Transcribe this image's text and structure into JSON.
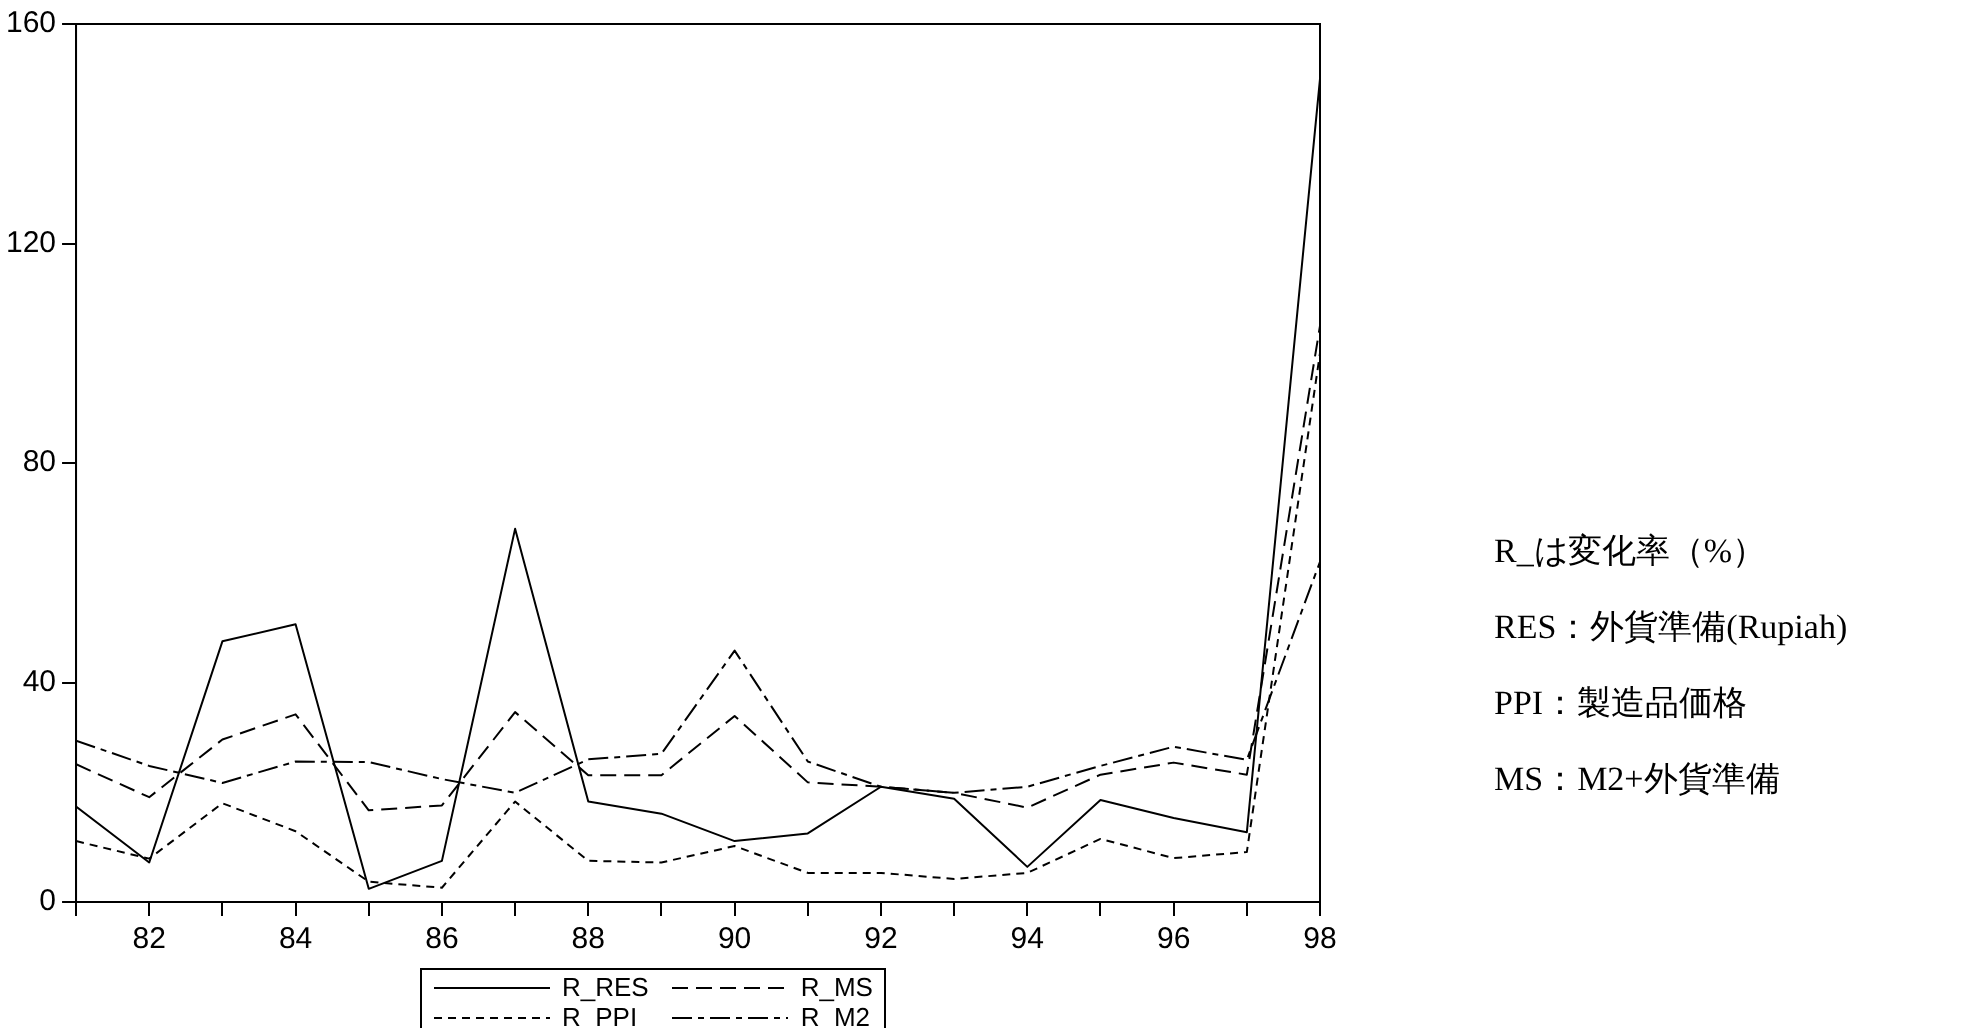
{
  "chart_data": {
    "type": "line",
    "x": [
      81,
      82,
      83,
      84,
      85,
      86,
      87,
      88,
      89,
      90,
      91,
      92,
      93,
      94,
      95,
      96,
      97,
      98
    ],
    "series": [
      {
        "name": "R_RES",
        "color": "#000000",
        "line_style": "solid",
        "values": [
          17.4,
          7.2,
          47.5,
          50.6,
          2.4,
          7.5,
          68,
          18.3,
          16.1,
          11.1,
          12.5,
          21,
          18.8,
          6.4,
          18.6,
          15.3,
          12.7,
          150
        ]
      },
      {
        "name": "R_MS",
        "color": "#000000",
        "line_style": "dashed",
        "values": [
          25.1,
          19.1,
          29.6,
          34.2,
          16.7,
          17.6,
          34.6,
          23.1,
          23.1,
          33.9,
          21.8,
          21,
          19.9,
          17.2,
          23.2,
          25.4,
          23.2,
          105
        ]
      },
      {
        "name": "R_PPI",
        "color": "#000000",
        "line_style": "dashed",
        "values": [
          11.1,
          7.9,
          18,
          12.9,
          3.7,
          2.6,
          18.3,
          7.5,
          7.2,
          10.2,
          5.3,
          5.3,
          4.2,
          5.3,
          11.5,
          8,
          9.1,
          100
        ]
      },
      {
        "name": "R_M2",
        "color": "#000000",
        "line_style": "dashed",
        "values": [
          29.4,
          24.8,
          21.7,
          25.6,
          25.5,
          22.4,
          19.9,
          26,
          27,
          45.8,
          25.6,
          21,
          19.9,
          21,
          24.8,
          28.3,
          25.9,
          62
        ]
      }
    ],
    "xlim": [
      81,
      98
    ],
    "xticks": [
      {
        "value": 81,
        "label": null
      },
      82,
      {
        "value": 83,
        "label": null
      },
      84,
      {
        "value": 85,
        "label": null
      },
      86,
      {
        "value": 87,
        "label": null
      },
      88,
      {
        "value": 89,
        "label": null
      },
      90,
      {
        "value": 91,
        "label": null
      },
      92,
      {
        "value": 93,
        "label": null
      },
      94,
      {
        "value": 95,
        "label": null
      },
      96,
      {
        "value": 97,
        "label": null
      },
      98
    ],
    "ylim": [
      0,
      160
    ],
    "yticks": [
      0,
      40,
      80,
      120,
      160
    ],
    "grid": false,
    "legend": "bottom",
    "marker": "none",
    "annotations": [
      "R_は変化率（%）",
      "RES：外貨準備(Rupiah)",
      "PPI：製造品価格",
      "MS：M2+外貨準備"
    ]
  }
}
